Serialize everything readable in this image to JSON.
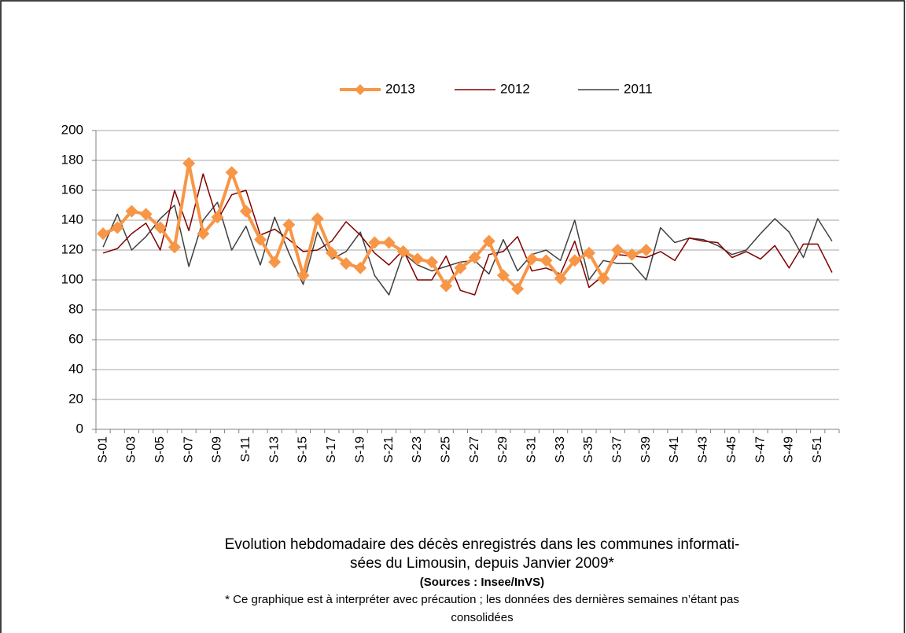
{
  "chart_data": {
    "type": "line",
    "title": [
      "Evolution hebdomadaire des décès enregistrés dans les communes informati-",
      "sées du Limousin, depuis Janvier  2009*"
    ],
    "source": "(Sources : Insee/InVS)",
    "note": [
      "* Ce graphique est à interpréter avec précaution ; les données des dernières semaines n’étant pas",
      "consolidées"
    ],
    "categories": [
      "S-01",
      null,
      "S-03",
      null,
      "S-05",
      null,
      "S-07",
      null,
      "S-09",
      null,
      "S-11",
      null,
      "S-13",
      null,
      "S-15",
      null,
      "S-17",
      null,
      "S-19",
      null,
      "S-21",
      null,
      "S-23",
      null,
      "S-25",
      null,
      "S-27",
      null,
      "S-29",
      null,
      "S-31",
      null,
      "S-33",
      null,
      "S-35",
      null,
      "S-37",
      null,
      "S-39",
      null,
      "S-41",
      null,
      "S-43",
      null,
      "S-45",
      null,
      "S-47",
      null,
      "S-49",
      null,
      "S-51",
      null
    ],
    "series": [
      {
        "name": "2013",
        "color": "#f79646",
        "marker": "diamond",
        "values": [
          131,
          135,
          146,
          144,
          135,
          122,
          178,
          131,
          142,
          172,
          146,
          127,
          112,
          137,
          103,
          141,
          118,
          111,
          108,
          125,
          125,
          119,
          114,
          112,
          96,
          108,
          115,
          126,
          103,
          94,
          114,
          113,
          101,
          113,
          118,
          101,
          120,
          117,
          120,
          null,
          null,
          null,
          null,
          null,
          null,
          null,
          null,
          null,
          null,
          null,
          null,
          null
        ]
      },
      {
        "name": "2012",
        "color": "#800000",
        "values": [
          118,
          121,
          131,
          138,
          120,
          160,
          133,
          171,
          140,
          157,
          160,
          130,
          134,
          127,
          119,
          120,
          126,
          139,
          130,
          118,
          110,
          120,
          100,
          100,
          116,
          93,
          90,
          117,
          119,
          129,
          106,
          108,
          104,
          126,
          95,
          103,
          117,
          116,
          115,
          119,
          113,
          128,
          126,
          125,
          115,
          119,
          114,
          123,
          108,
          124,
          124,
          105
        ]
      },
      {
        "name": "2011",
        "color": "#404040",
        "values": [
          122,
          144,
          120,
          129,
          141,
          150,
          109,
          140,
          152,
          120,
          136,
          110,
          142,
          118,
          97,
          132,
          114,
          119,
          132,
          103,
          90,
          118,
          110,
          106,
          109,
          112,
          113,
          104,
          127,
          106,
          117,
          120,
          113,
          140,
          100,
          113,
          111,
          111,
          100,
          135,
          125,
          128,
          127,
          123,
          117,
          120,
          131,
          141,
          132,
          115,
          141,
          126
        ]
      }
    ],
    "ylim": [
      0,
      200
    ],
    "yticks": [
      0,
      20,
      40,
      60,
      80,
      100,
      120,
      140,
      160,
      180,
      200
    ],
    "grid": true,
    "legend": "top"
  }
}
